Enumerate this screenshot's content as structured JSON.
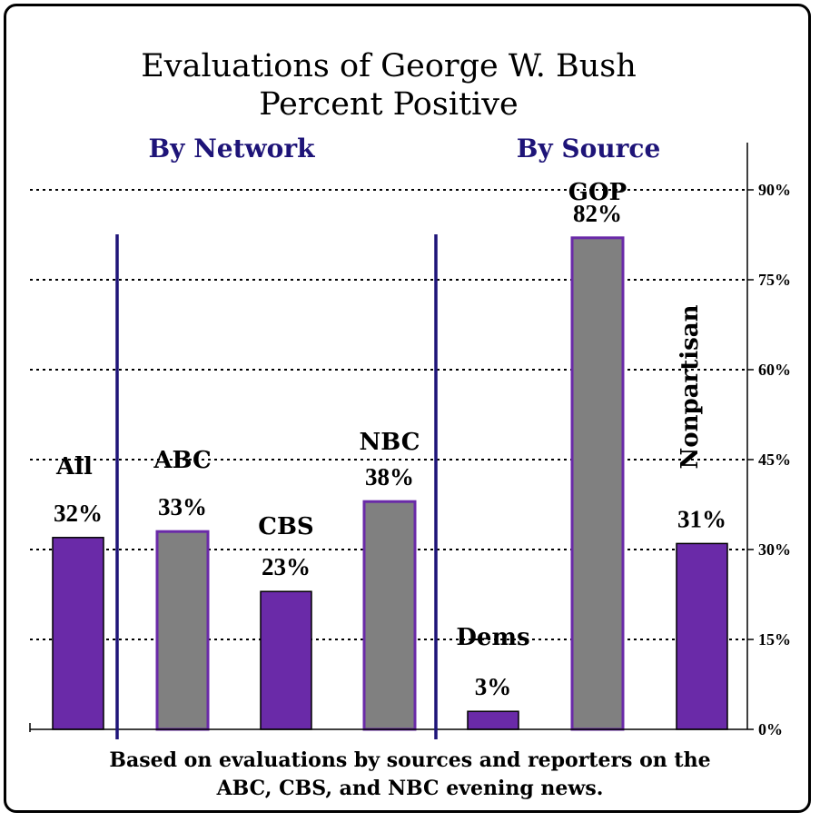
{
  "chart_data": {
    "type": "bar",
    "title": "Evaluations of George W. Bush",
    "subtitle": "Percent Positive",
    "groups": [
      {
        "label": "By Network"
      },
      {
        "label": "By Source"
      }
    ],
    "categories": [
      "All",
      "ABC",
      "CBS",
      "NBC",
      "Dems",
      "GOP",
      "Nonpartisan"
    ],
    "values": [
      32,
      33,
      23,
      38,
      3,
      82,
      31
    ],
    "value_labels": [
      "32%",
      "33%",
      "23%",
      "38%",
      "3%",
      "82%",
      "31%"
    ],
    "fills": [
      "purple",
      "gray",
      "purple",
      "gray",
      "purple",
      "gray",
      "purple"
    ],
    "ylim": [
      0,
      100
    ],
    "yticks": [
      0,
      15,
      30,
      45,
      60,
      75,
      90
    ],
    "ytick_labels": [
      "0%",
      "15%",
      "30%",
      "45%",
      "60%",
      "75%",
      "90%"
    ],
    "yaxis_side": "right",
    "grid": "dotted horizontal",
    "legend": "none",
    "colors": {
      "purple": "#6a2aa8",
      "gray": "#808080",
      "divider": "#1e1478",
      "group_label": "#1e1478"
    }
  },
  "footnote": {
    "line1": "Based on evaluations by sources and reporters on the",
    "line2": "ABC, CBS, and NBC evening news."
  }
}
